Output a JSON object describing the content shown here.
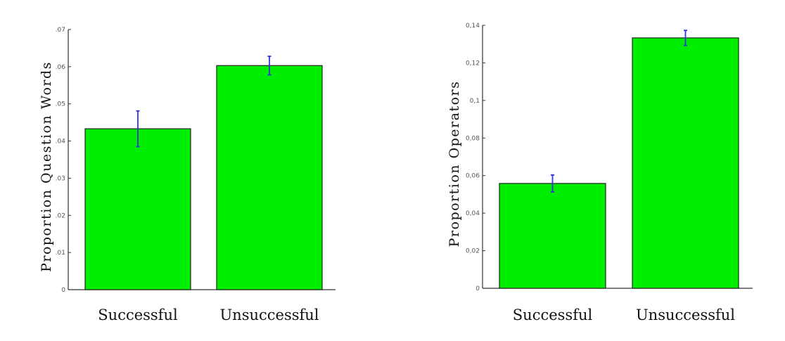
{
  "chart_data": [
    {
      "type": "bar",
      "categories": [
        "Successful",
        "Unsuccessful"
      ],
      "values": [
        0.0433,
        0.0603
      ],
      "error": [
        0.0048,
        0.0025
      ],
      "ylabel": "Proportion Question Words",
      "ylim": [
        0,
        0.07
      ],
      "yticks": [
        0,
        0.01,
        0.02,
        0.03,
        0.04,
        0.05,
        0.06,
        0.07
      ],
      "ytick_labels": [
        "0",
        ".01",
        ".02",
        ".03",
        ".04",
        ".05",
        ".06",
        ".07"
      ],
      "bar_color": "#00ee00",
      "error_color": "#3333dd",
      "grid": false
    },
    {
      "type": "bar",
      "categories": [
        "Successful",
        "Unsuccessful"
      ],
      "values": [
        0.0558,
        0.1333
      ],
      "error": [
        0.0045,
        0.004
      ],
      "ylabel": "Proportion Operators",
      "ylim": [
        0,
        0.14
      ],
      "yticks": [
        0,
        0.02,
        0.04,
        0.06,
        0.08,
        0.1,
        0.12,
        0.14
      ],
      "ytick_labels": [
        "0",
        "0,02",
        "0,04",
        "0,06",
        "0,08",
        "0,1",
        "0,12",
        "0,14"
      ],
      "bar_color": "#00ee00",
      "error_color": "#3333dd",
      "grid": false
    }
  ]
}
